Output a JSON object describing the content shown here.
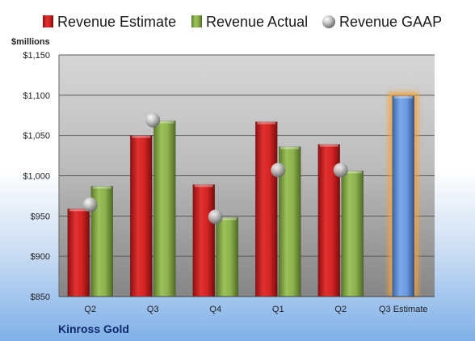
{
  "chart_data": {
    "type": "bar",
    "company": "Kinross Gold",
    "unit_label": "$millions",
    "categories": [
      "Q2",
      "Q3",
      "Q4",
      "Q1",
      "Q2",
      "Q3 Estimate"
    ],
    "series": [
      {
        "name": "Revenue Estimate",
        "type": "bar",
        "color": "#cc1f1f",
        "values": [
          959,
          1050,
          989,
          1067,
          1039,
          null
        ]
      },
      {
        "name": "Revenue Actual",
        "type": "bar",
        "color": "#8aae4a",
        "values": [
          987,
          1068,
          948,
          1036,
          1006,
          null
        ]
      },
      {
        "name": "Revenue GAAP",
        "type": "marker",
        "color": "#b0b0b0",
        "values": [
          964,
          1069,
          949,
          1007,
          1007,
          null
        ]
      },
      {
        "name": "Q3 Estimate",
        "type": "bar",
        "color": "#5b8fd6",
        "values": [
          null,
          null,
          null,
          null,
          null,
          1099
        ]
      }
    ],
    "ylim": [
      850,
      1150
    ],
    "yticks": [
      850,
      900,
      950,
      1000,
      1050,
      1100,
      1150
    ],
    "ytick_labels": [
      "$850",
      "$900",
      "$950",
      "$1,000",
      "$1,050",
      "$1,100",
      "$1,150"
    ],
    "legend_position": "top",
    "grid": true
  },
  "colors": {
    "plot_background_top": "#d4d4d4",
    "plot_background_bottom": "#8a8a8a",
    "highlight_glow": "#f6a23a",
    "company_text": "#0e2a6a"
  }
}
